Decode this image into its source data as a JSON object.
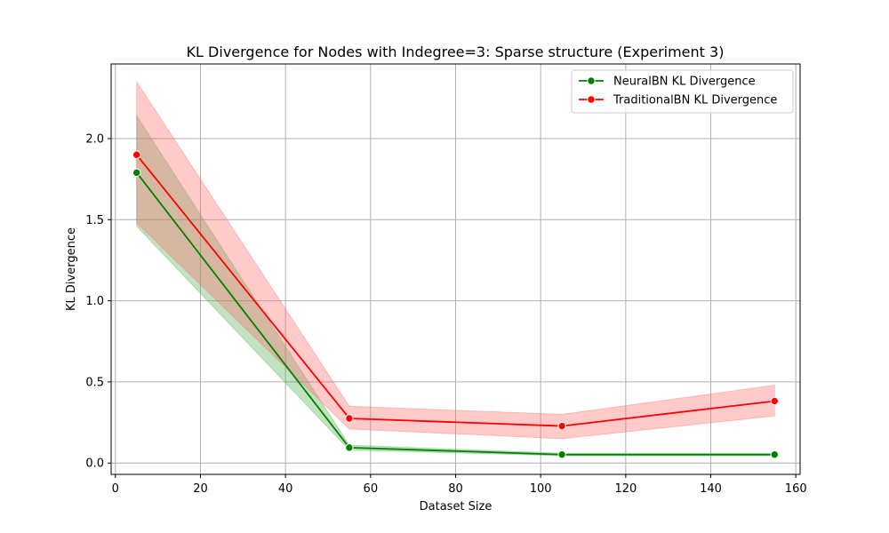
{
  "chart_data": {
    "type": "line",
    "title": "KL Divergence for Nodes with Indegree=3: Sparse structure (Experiment 3)",
    "xlabel": "Dataset Size",
    "ylabel": "KL Divergence",
    "xlim": [
      -1,
      161
    ],
    "ylim": [
      -0.07,
      2.46
    ],
    "xticks": [
      0,
      20,
      40,
      60,
      80,
      100,
      120,
      140,
      160
    ],
    "yticks": [
      0.0,
      0.5,
      1.0,
      1.5,
      2.0
    ],
    "xtick_labels": [
      "0",
      "20",
      "40",
      "60",
      "80",
      "100",
      "120",
      "140",
      "160"
    ],
    "ytick_labels": [
      "0.0",
      "0.5",
      "1.0",
      "1.5",
      "2.0"
    ],
    "grid": true,
    "legend_position": "top-right",
    "series": [
      {
        "name": "NeuralBN KL Divergence",
        "color": "#008000",
        "band_color": "#4caf50",
        "marker": "circle",
        "x": [
          5,
          55,
          105,
          155
        ],
        "y": [
          1.79,
          0.095,
          0.052,
          0.052
        ],
        "lower": [
          1.46,
          0.08,
          0.045,
          0.045
        ],
        "upper": [
          2.14,
          0.11,
          0.06,
          0.06
        ]
      },
      {
        "name": "TraditionalBN KL Divergence",
        "color": "#ff0000",
        "band_color": "#ff6666",
        "marker": "circle",
        "x": [
          5,
          55,
          105,
          155
        ],
        "y": [
          1.9,
          0.275,
          0.228,
          0.382
        ],
        "lower": [
          1.48,
          0.21,
          0.15,
          0.29
        ],
        "upper": [
          2.35,
          0.35,
          0.3,
          0.48
        ]
      }
    ]
  }
}
